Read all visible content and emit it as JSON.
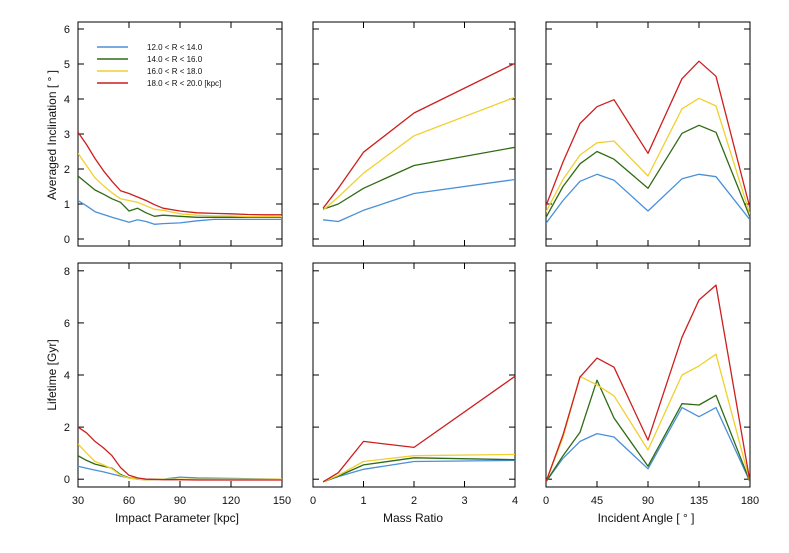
{
  "colors": [
    "#4a90d9",
    "#2f6b14",
    "#f0d030",
    "#cc1f1f"
  ],
  "legend": [
    "12.0 < R < 14.0",
    "14.0 < R < 16.0",
    "16.0 < R < 18.0",
    "18.0 < R < 20.0 [kpc]"
  ],
  "chart_data": [
    {
      "type": "line",
      "panel": "top-left",
      "xlabel": "",
      "ylabel": "Averaged Inclination [ ° ]",
      "xlim": [
        30,
        150
      ],
      "ylim": [
        -0.2,
        6.2
      ],
      "xticks": [
        30,
        60,
        90,
        120,
        150
      ],
      "yticks": [
        0,
        1,
        2,
        3,
        4,
        5,
        6
      ],
      "x": [
        30,
        35,
        40,
        45,
        50,
        55,
        60,
        65,
        70,
        75,
        80,
        90,
        100,
        110,
        120,
        130,
        140,
        150
      ],
      "series": [
        {
          "name": "12.0 < R < 14.0",
          "values": [
            1.1,
            0.95,
            0.78,
            0.7,
            0.62,
            0.55,
            0.48,
            0.55,
            0.5,
            0.42,
            0.44,
            0.46,
            0.52,
            0.56,
            0.56,
            0.56,
            0.56,
            0.56
          ]
        },
        {
          "name": "14.0 < R < 16.0",
          "values": [
            1.8,
            1.6,
            1.4,
            1.28,
            1.15,
            1.05,
            0.8,
            0.88,
            0.75,
            0.65,
            0.68,
            0.65,
            0.62,
            0.62,
            0.62,
            0.62,
            0.62,
            0.62
          ]
        },
        {
          "name": "16.0 < R < 18.0",
          "values": [
            2.45,
            2.1,
            1.75,
            1.52,
            1.32,
            1.15,
            1.1,
            1.05,
            0.95,
            0.85,
            0.82,
            0.72,
            0.68,
            0.66,
            0.66,
            0.64,
            0.64,
            0.64
          ]
        },
        {
          "name": "18.0 < R < 20.0 [kpc]",
          "values": [
            3.05,
            2.7,
            2.3,
            1.95,
            1.65,
            1.38,
            1.3,
            1.2,
            1.1,
            0.98,
            0.88,
            0.8,
            0.75,
            0.73,
            0.72,
            0.7,
            0.69,
            0.69
          ]
        }
      ]
    },
    {
      "type": "line",
      "panel": "top-middle",
      "xlabel": "",
      "ylabel": "",
      "xlim": [
        0,
        4
      ],
      "ylim": [
        -0.2,
        6.2
      ],
      "xticks": [
        0,
        1,
        2,
        3,
        4
      ],
      "yticks": [
        0,
        1,
        2,
        3,
        4,
        5,
        6
      ],
      "x": [
        0.2,
        0.5,
        1,
        2,
        4
      ],
      "series": [
        {
          "name": "12.0 < R < 14.0",
          "values": [
            0.55,
            0.5,
            0.82,
            1.3,
            1.7
          ]
        },
        {
          "name": "14.0 < R < 16.0",
          "values": [
            0.85,
            1.0,
            1.45,
            2.1,
            2.62
          ]
        },
        {
          "name": "16.0 < R < 18.0",
          "values": [
            0.82,
            1.2,
            1.88,
            2.95,
            4.05
          ]
        },
        {
          "name": "18.0 < R < 20.0 [kpc]",
          "values": [
            0.88,
            1.45,
            2.48,
            3.6,
            5.02
          ]
        }
      ]
    },
    {
      "type": "line",
      "panel": "top-right",
      "xlabel": "",
      "ylabel": "",
      "xlim": [
        0,
        180
      ],
      "ylim": [
        -0.2,
        6.2
      ],
      "xticks": [
        0,
        45,
        90,
        135,
        180
      ],
      "yticks": [
        0,
        1,
        2,
        3,
        4,
        5,
        6
      ],
      "x": [
        0,
        15,
        30,
        45,
        60,
        90,
        120,
        135,
        150,
        180
      ],
      "series": [
        {
          "name": "12.0 < R < 14.0",
          "values": [
            0.45,
            1.1,
            1.65,
            1.85,
            1.68,
            0.8,
            1.72,
            1.85,
            1.78,
            0.55
          ]
        },
        {
          "name": "14.0 < R < 16.0",
          "values": [
            0.62,
            1.5,
            2.15,
            2.5,
            2.28,
            1.45,
            3.02,
            3.25,
            3.05,
            0.62
          ]
        },
        {
          "name": "16.0 < R < 18.0",
          "values": [
            0.78,
            1.7,
            2.4,
            2.75,
            2.8,
            1.8,
            3.72,
            4.02,
            3.8,
            0.7
          ]
        },
        {
          "name": "18.0 < R < 20.0 [kpc]",
          "values": [
            0.95,
            2.2,
            3.3,
            3.78,
            3.98,
            2.45,
            4.58,
            5.08,
            4.65,
            0.88
          ]
        }
      ]
    },
    {
      "type": "line",
      "panel": "bottom-left",
      "xlabel": "Impact Parameter [kpc]",
      "ylabel": "Lifetime [Gyr]",
      "xlim": [
        30,
        150
      ],
      "ylim": [
        -0.3,
        8.3
      ],
      "xticks": [
        30,
        60,
        90,
        120,
        150
      ],
      "yticks": [
        0,
        2,
        4,
        6,
        8
      ],
      "x": [
        30,
        35,
        40,
        45,
        50,
        55,
        60,
        65,
        70,
        80,
        90,
        100,
        120,
        150
      ],
      "series": [
        {
          "name": "12.0 < R < 14.0",
          "values": [
            0.5,
            0.42,
            0.35,
            0.28,
            0.2,
            0.12,
            0.05,
            0.02,
            0.0,
            0.0,
            0.08,
            0.05,
            0.03,
            0.0
          ]
        },
        {
          "name": "14.0 < R < 16.0",
          "values": [
            0.9,
            0.72,
            0.58,
            0.5,
            0.42,
            0.18,
            0.05,
            0.0,
            -0.02,
            0.0,
            0.0,
            0.0,
            0.0,
            0.0
          ]
        },
        {
          "name": "16.0 < R < 18.0",
          "values": [
            1.35,
            1.0,
            0.68,
            0.55,
            0.4,
            0.15,
            0.04,
            0.0,
            -0.02,
            0.0,
            0.0,
            0.0,
            0.0,
            0.0
          ]
        },
        {
          "name": "18.0 < R < 20.0 [kpc]",
          "values": [
            2.0,
            1.78,
            1.45,
            1.2,
            0.9,
            0.45,
            0.15,
            0.05,
            0.0,
            -0.02,
            -0.02,
            -0.03,
            -0.03,
            -0.03
          ]
        }
      ]
    },
    {
      "type": "line",
      "panel": "bottom-middle",
      "xlabel": "Mass Ratio",
      "ylabel": "",
      "xlim": [
        0,
        4
      ],
      "ylim": [
        -0.3,
        8.3
      ],
      "xticks": [
        0,
        1,
        2,
        3,
        4
      ],
      "yticks": [
        0,
        2,
        4,
        6,
        8
      ],
      "x": [
        0.2,
        0.5,
        1,
        2,
        4
      ],
      "series": [
        {
          "name": "12.0 < R < 14.0",
          "values": [
            -0.1,
            0.1,
            0.38,
            0.68,
            0.72
          ]
        },
        {
          "name": "14.0 < R < 16.0",
          "values": [
            -0.1,
            0.12,
            0.55,
            0.82,
            0.75
          ]
        },
        {
          "name": "16.0 < R < 18.0",
          "values": [
            -0.1,
            0.15,
            0.68,
            0.9,
            0.95
          ]
        },
        {
          "name": "18.0 < R < 20.0 [kpc]",
          "values": [
            -0.1,
            0.25,
            1.45,
            1.22,
            3.95
          ]
        }
      ]
    },
    {
      "type": "line",
      "panel": "bottom-right",
      "xlabel": "Incident Angle [ ° ]",
      "ylabel": "",
      "xlim": [
        0,
        180
      ],
      "ylim": [
        -0.3,
        8.3
      ],
      "xticks": [
        0,
        45,
        90,
        135,
        180
      ],
      "yticks": [
        0,
        2,
        4,
        6,
        8
      ],
      "x": [
        0,
        15,
        30,
        45,
        60,
        90,
        120,
        135,
        150,
        180
      ],
      "series": [
        {
          "name": "12.0 < R < 14.0",
          "values": [
            -0.1,
            0.8,
            1.45,
            1.75,
            1.62,
            0.4,
            2.75,
            2.4,
            2.75,
            -0.1
          ]
        },
        {
          "name": "14.0 < R < 16.0",
          "values": [
            -0.1,
            0.9,
            1.8,
            3.8,
            2.35,
            0.5,
            2.9,
            2.85,
            3.22,
            -0.1
          ]
        },
        {
          "name": "16.0 < R < 18.0",
          "values": [
            -0.1,
            1.6,
            3.95,
            3.62,
            3.2,
            1.12,
            4.0,
            4.35,
            4.8,
            -0.1
          ]
        },
        {
          "name": "18.0 < R < 20.0 [kpc]",
          "values": [
            -0.1,
            1.7,
            3.92,
            4.65,
            4.3,
            1.5,
            5.45,
            6.88,
            7.45,
            -0.1
          ]
        }
      ]
    }
  ]
}
